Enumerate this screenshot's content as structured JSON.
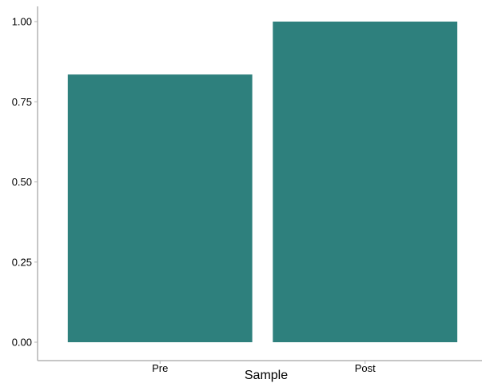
{
  "chart_data": {
    "type": "bar",
    "categories": [
      "Pre",
      "Post"
    ],
    "values": [
      0.835,
      1.0
    ],
    "xlabel": "Sample",
    "ylabel": "",
    "ylim": [
      0,
      1.0
    ],
    "yticks": [
      "0.00",
      "0.25",
      "0.50",
      "0.75",
      "1.00"
    ],
    "grid": false,
    "bar_color": "#2e807d",
    "axis_color": "#b3b3b3"
  }
}
